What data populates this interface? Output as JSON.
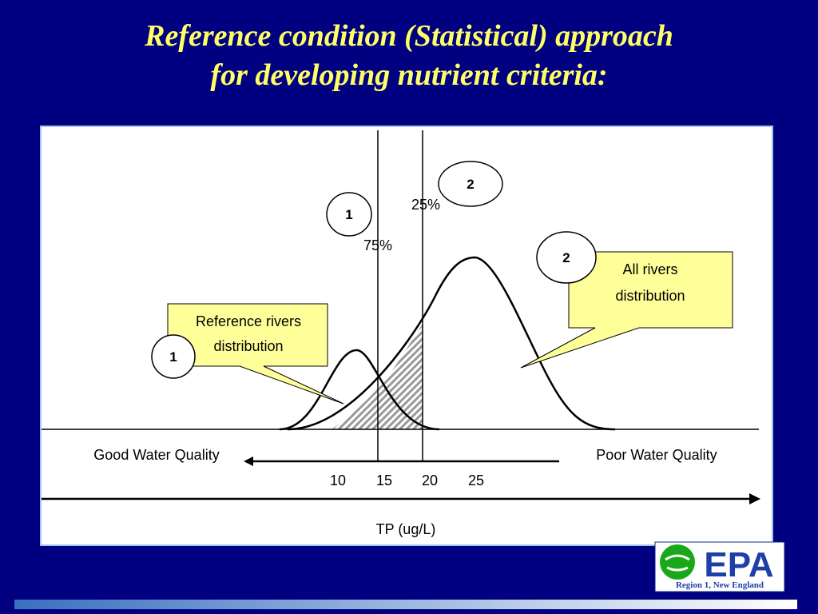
{
  "title": {
    "line1": "Reference condition (Statistical) approach",
    "line2": "for developing nutrient criteria:"
  },
  "diagram": {
    "percentiles": [
      "75%",
      "25%"
    ],
    "markers": [
      "1",
      "2",
      "2",
      "1"
    ],
    "callouts": [
      {
        "lines": [
          "Reference rivers",
          "distribution"
        ]
      },
      {
        "lines": [
          "All rivers",
          "distribution"
        ]
      }
    ],
    "quality_labels": [
      "Good Water Quality",
      "Poor Water Quality"
    ],
    "tick_labels": [
      "10",
      "15",
      "20",
      "25"
    ],
    "x_axis_label": "TP (ug/L)"
  },
  "logo": {
    "name": "EPA",
    "region": "Region 1, New England"
  }
}
